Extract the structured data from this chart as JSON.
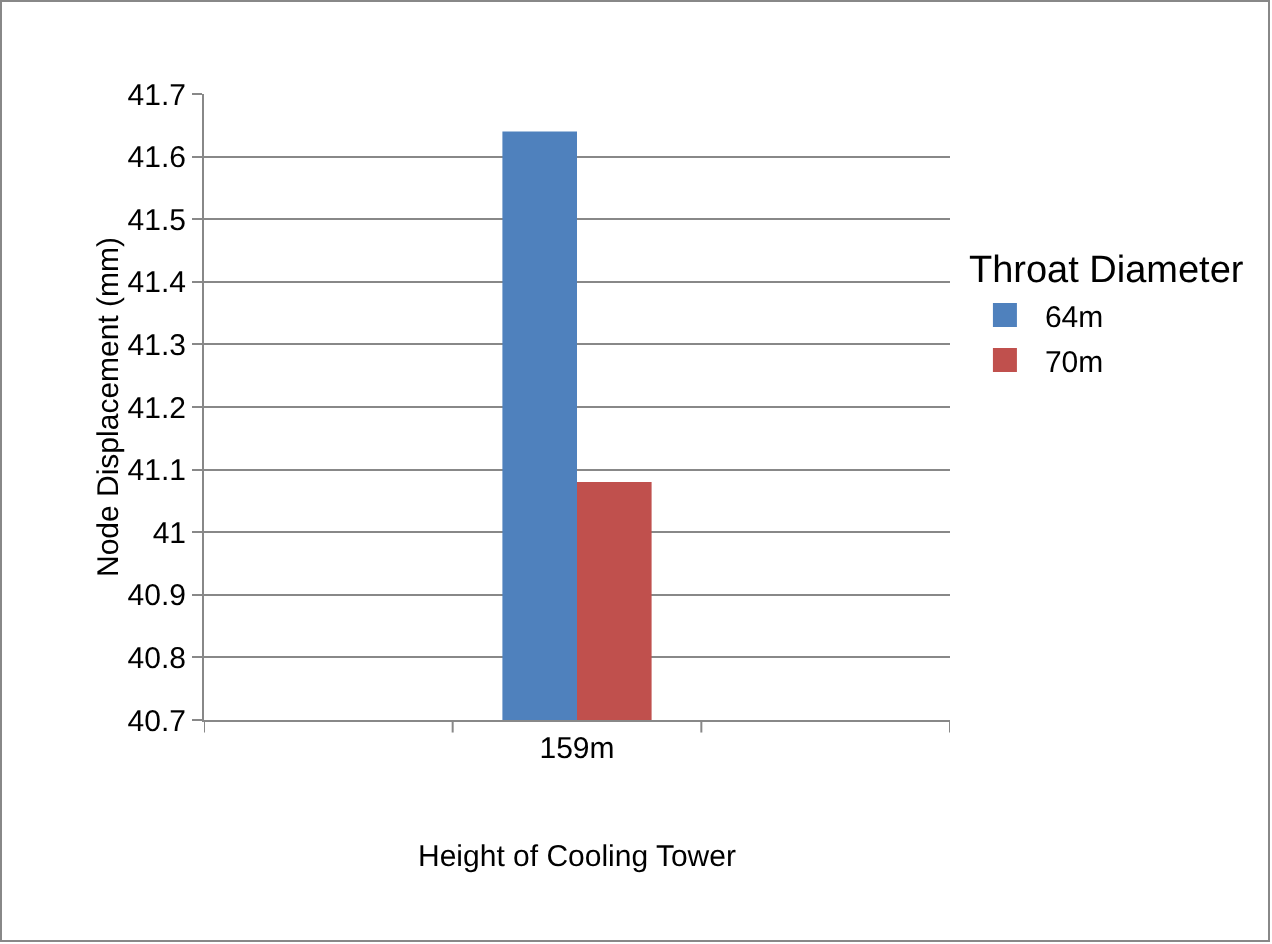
{
  "chart_data": {
    "type": "bar",
    "xlabel": "Height of Cooling Tower",
    "ylabel": "Node Displacement (mm)",
    "legend_title": "Throat Diameter",
    "categories": [
      null,
      "159m",
      null
    ],
    "series": [
      {
        "name": "64m",
        "color": "#4f81bd",
        "values": [
          null,
          41.64,
          null
        ]
      },
      {
        "name": "70m",
        "color": "#c0504d",
        "values": [
          null,
          41.08,
          null
        ]
      }
    ],
    "ylim": [
      40.7,
      41.7
    ],
    "yticks": [
      40.7,
      40.8,
      40.9,
      41,
      41.1,
      41.2,
      41.3,
      41.4,
      41.5,
      41.6,
      41.7
    ],
    "grid": "y",
    "legend": "right"
  }
}
